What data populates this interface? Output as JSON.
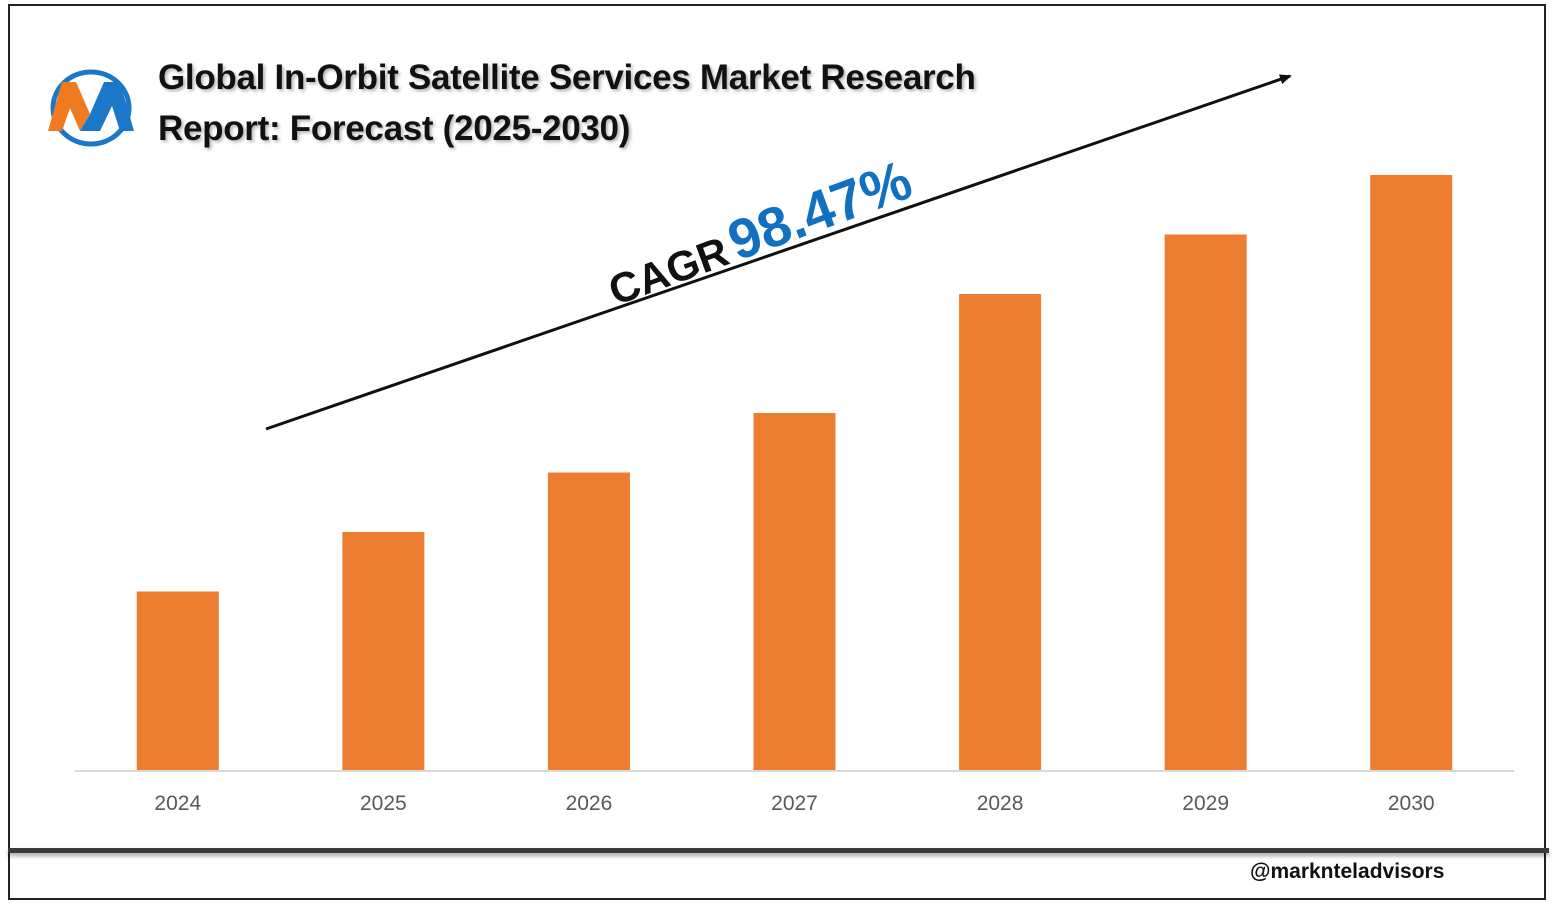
{
  "title": {
    "line1": "Global In-Orbit Satellite Services Market Research",
    "line2": "Report: Forecast (2025-2030)"
  },
  "logo_icon": "m-letter-logo-icon",
  "cagr": {
    "label": "CAGR",
    "value": "98.47%"
  },
  "footer": {
    "handle": "@marknteladvisors"
  },
  "chart_data": {
    "type": "bar",
    "title": "Global In-Orbit Satellite Services Market Research Report: Forecast (2025-2030)",
    "categories": [
      "2024",
      "2025",
      "2026",
      "2027",
      "2028",
      "2029",
      "2030"
    ],
    "values": [
      30,
      40,
      50,
      60,
      80,
      90,
      100
    ],
    "ylim": [
      0,
      100
    ],
    "xlabel": "",
    "ylabel": "",
    "grid": false,
    "legend": "none",
    "colors": {
      "bar": "#ED7D31",
      "axis": "#D9D9D9",
      "tick_text": "#595959",
      "cagr_value": "#1170C0"
    }
  }
}
